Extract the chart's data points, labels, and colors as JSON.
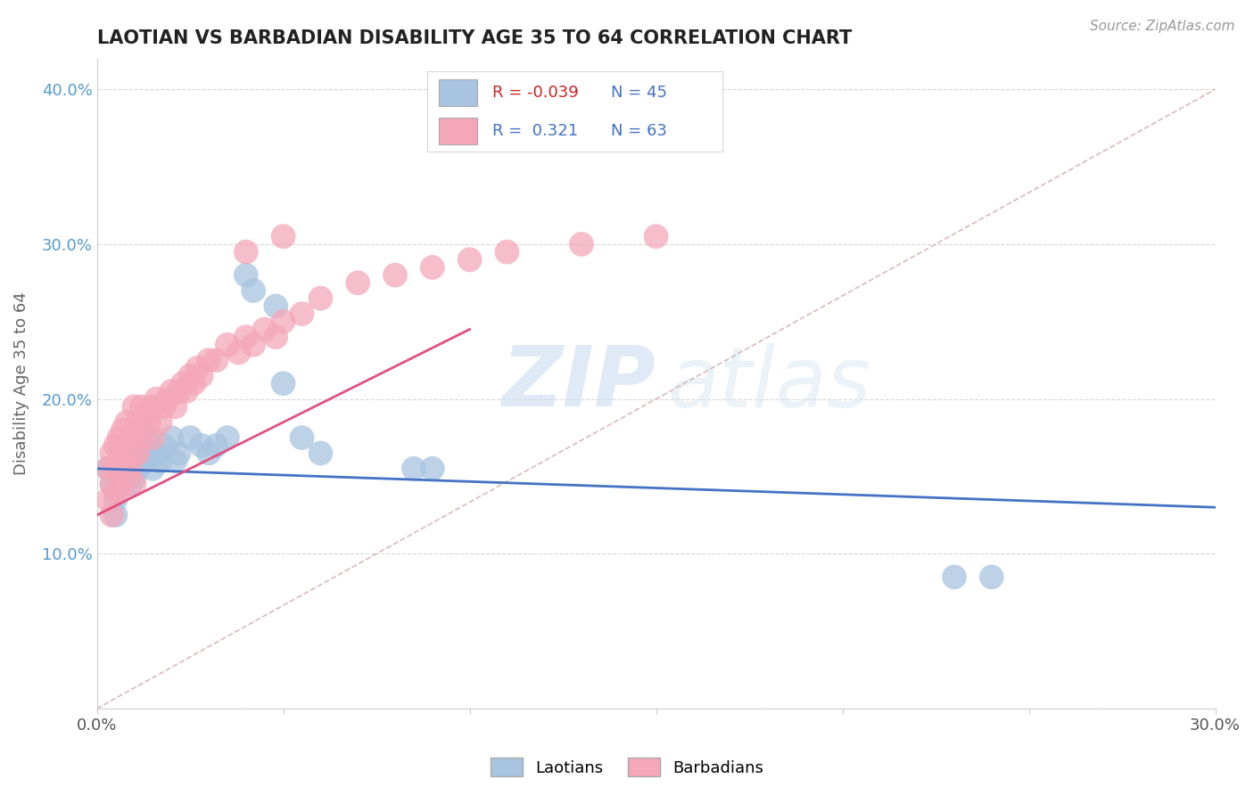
{
  "title": "LAOTIAN VS BARBADIAN DISABILITY AGE 35 TO 64 CORRELATION CHART",
  "source": "Source: ZipAtlas.com",
  "ylabel": "Disability Age 35 to 64",
  "xlim": [
    0.0,
    0.3
  ],
  "ylim": [
    0.0,
    0.42
  ],
  "xtick_positions": [
    0.0,
    0.05,
    0.1,
    0.15,
    0.2,
    0.25,
    0.3
  ],
  "xtick_labels": [
    "0.0%",
    "",
    "",
    "",
    "",
    "",
    "30.0%"
  ],
  "ytick_positions": [
    0.0,
    0.1,
    0.2,
    0.3,
    0.4
  ],
  "ytick_labels": [
    "",
    "10.0%",
    "20.0%",
    "30.0%",
    "40.0%"
  ],
  "legend_label1": "Laotians",
  "legend_label2": "Barbadians",
  "r1": "-0.039",
  "n1": "45",
  "r2": "0.321",
  "n2": "63",
  "color_laotian": "#a8c4e0",
  "color_barbadian": "#f4a7b9",
  "line_color_laotian": "#4472c4",
  "line_color_barbadian": "#e05080",
  "diagonal_color": "#ccaaaa",
  "watermark_zip": "ZIP",
  "watermark_atlas": "atlas",
  "laotian_x": [
    0.003,
    0.004,
    0.005,
    0.005,
    0.006,
    0.006,
    0.007,
    0.007,
    0.008,
    0.008,
    0.009,
    0.009,
    0.01,
    0.01,
    0.01,
    0.011,
    0.011,
    0.012,
    0.012,
    0.013,
    0.013,
    0.014,
    0.015,
    0.015,
    0.016,
    0.017,
    0.018,
    0.02,
    0.021,
    0.022,
    0.025,
    0.028,
    0.03,
    0.032,
    0.035,
    0.04,
    0.042,
    0.048,
    0.05,
    0.055,
    0.06,
    0.085,
    0.09,
    0.23,
    0.24
  ],
  "laotian_y": [
    0.155,
    0.145,
    0.135,
    0.125,
    0.165,
    0.15,
    0.16,
    0.145,
    0.17,
    0.155,
    0.16,
    0.145,
    0.175,
    0.165,
    0.15,
    0.17,
    0.155,
    0.18,
    0.165,
    0.175,
    0.16,
    0.165,
    0.17,
    0.155,
    0.165,
    0.16,
    0.17,
    0.175,
    0.16,
    0.165,
    0.175,
    0.17,
    0.165,
    0.17,
    0.175,
    0.28,
    0.27,
    0.26,
    0.21,
    0.175,
    0.165,
    0.155,
    0.155,
    0.085,
    0.085
  ],
  "barbadian_x": [
    0.003,
    0.003,
    0.004,
    0.004,
    0.004,
    0.005,
    0.005,
    0.005,
    0.006,
    0.006,
    0.006,
    0.007,
    0.007,
    0.008,
    0.008,
    0.008,
    0.009,
    0.009,
    0.01,
    0.01,
    0.01,
    0.01,
    0.011,
    0.011,
    0.012,
    0.012,
    0.013,
    0.014,
    0.015,
    0.015,
    0.016,
    0.017,
    0.018,
    0.019,
    0.02,
    0.021,
    0.022,
    0.023,
    0.024,
    0.025,
    0.026,
    0.027,
    0.028,
    0.03,
    0.032,
    0.035,
    0.038,
    0.04,
    0.042,
    0.045,
    0.048,
    0.05,
    0.055,
    0.06,
    0.07,
    0.08,
    0.09,
    0.1,
    0.11,
    0.13,
    0.15,
    0.04,
    0.05
  ],
  "barbadian_y": [
    0.155,
    0.135,
    0.165,
    0.145,
    0.125,
    0.17,
    0.155,
    0.14,
    0.175,
    0.16,
    0.14,
    0.18,
    0.16,
    0.185,
    0.17,
    0.15,
    0.175,
    0.155,
    0.195,
    0.18,
    0.165,
    0.145,
    0.185,
    0.165,
    0.195,
    0.175,
    0.19,
    0.185,
    0.195,
    0.175,
    0.2,
    0.185,
    0.195,
    0.2,
    0.205,
    0.195,
    0.205,
    0.21,
    0.205,
    0.215,
    0.21,
    0.22,
    0.215,
    0.225,
    0.225,
    0.235,
    0.23,
    0.24,
    0.235,
    0.245,
    0.24,
    0.25,
    0.255,
    0.265,
    0.275,
    0.28,
    0.285,
    0.29,
    0.295,
    0.3,
    0.305,
    0.295,
    0.305
  ],
  "laotian_line_x0": 0.0,
  "laotian_line_y0": 0.155,
  "laotian_line_x1": 0.3,
  "laotian_line_y1": 0.13,
  "barbadian_line_x0": 0.0,
  "barbadian_line_y0": 0.125,
  "barbadian_line_x1": 0.1,
  "barbadian_line_y1": 0.245
}
